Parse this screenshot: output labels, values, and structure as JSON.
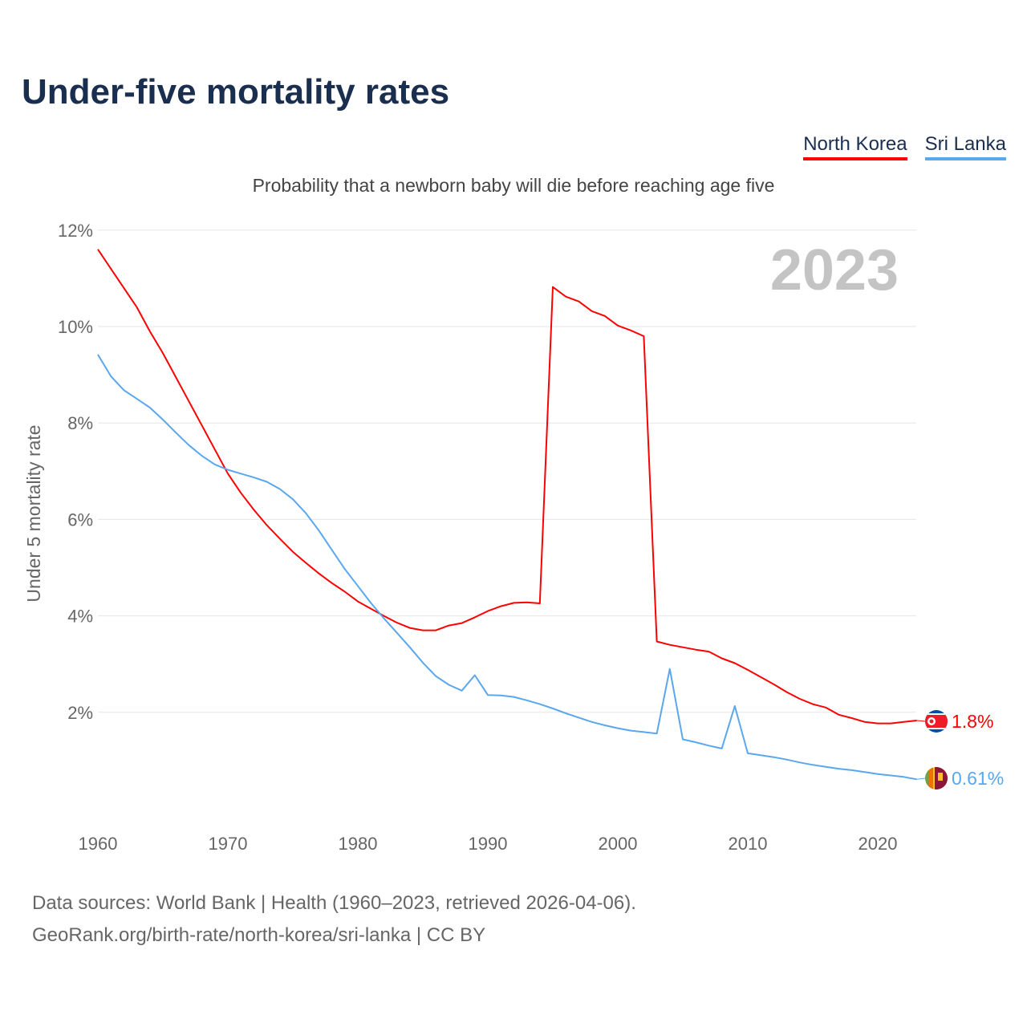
{
  "header": {
    "title": "Under-five mortality rates",
    "subtitle": "Probability that a newborn baby will die before reaching age five",
    "year_badge": "2023"
  },
  "legend": [
    {
      "label": "North Korea",
      "color": "#ff0000"
    },
    {
      "label": "Sri Lanka",
      "color": "#5aa7ee"
    }
  ],
  "footer": {
    "line1": "Data sources: World Bank | Health (1960–2023, retrieved 2026-04-06).",
    "line2": "GeoRank.org/birth-rate/north-korea/sri-lanka | CC BY"
  },
  "chart_data": {
    "type": "line",
    "title": "Under-five mortality rates",
    "xlabel": "",
    "ylabel": "Under 5 mortality rate",
    "xlim": [
      1960,
      2023
    ],
    "ylim": [
      0,
      12
    ],
    "x_ticks": [
      "1960",
      "1970",
      "1980",
      "1990",
      "2000",
      "2010",
      "2020"
    ],
    "y_ticks": [
      "2%",
      "4%",
      "6%",
      "8%",
      "10%",
      "12%"
    ],
    "y_tick_values": [
      2,
      4,
      6,
      8,
      10,
      12
    ],
    "grid": true,
    "legend_position": "top-right",
    "x_start": 1960,
    "series": [
      {
        "name": "North Korea",
        "color": "#ff0000",
        "end_label": "1.8%",
        "flag": "north-korea",
        "values": [
          11.6,
          11.2,
          10.8,
          10.4,
          9.9,
          9.45,
          8.95,
          8.45,
          7.95,
          7.45,
          6.95,
          6.55,
          6.2,
          5.88,
          5.6,
          5.33,
          5.1,
          4.88,
          4.68,
          4.5,
          4.3,
          4.15,
          4.0,
          3.86,
          3.75,
          3.7,
          3.7,
          3.8,
          3.85,
          3.97,
          4.1,
          4.2,
          4.27,
          4.28,
          4.26,
          10.82,
          10.62,
          10.52,
          10.32,
          10.22,
          10.02,
          9.92,
          9.8,
          3.47,
          3.4,
          3.35,
          3.3,
          3.26,
          3.12,
          3.02,
          2.88,
          2.73,
          2.58,
          2.42,
          2.28,
          2.17,
          2.1,
          1.95,
          1.88,
          1.8,
          1.77,
          1.77,
          1.8,
          1.83
        ]
      },
      {
        "name": "Sri Lanka",
        "color": "#5aa7ee",
        "end_label": "0.61%",
        "flag": "sri-lanka",
        "values": [
          9.42,
          8.97,
          8.68,
          8.5,
          8.32,
          8.07,
          7.8,
          7.54,
          7.32,
          7.14,
          7.03,
          6.95,
          6.87,
          6.78,
          6.63,
          6.42,
          6.13,
          5.77,
          5.37,
          4.97,
          4.62,
          4.27,
          3.95,
          3.65,
          3.35,
          3.03,
          2.75,
          2.57,
          2.45,
          2.77,
          2.36,
          2.35,
          2.32,
          2.25,
          2.17,
          2.08,
          1.98,
          1.89,
          1.8,
          1.73,
          1.67,
          1.62,
          1.59,
          1.56,
          2.9,
          1.44,
          1.38,
          1.31,
          1.25,
          2.13,
          1.15,
          1.11,
          1.07,
          1.02,
          0.96,
          0.91,
          0.87,
          0.83,
          0.8,
          0.76,
          0.72,
          0.69,
          0.66,
          0.61
        ]
      }
    ]
  }
}
